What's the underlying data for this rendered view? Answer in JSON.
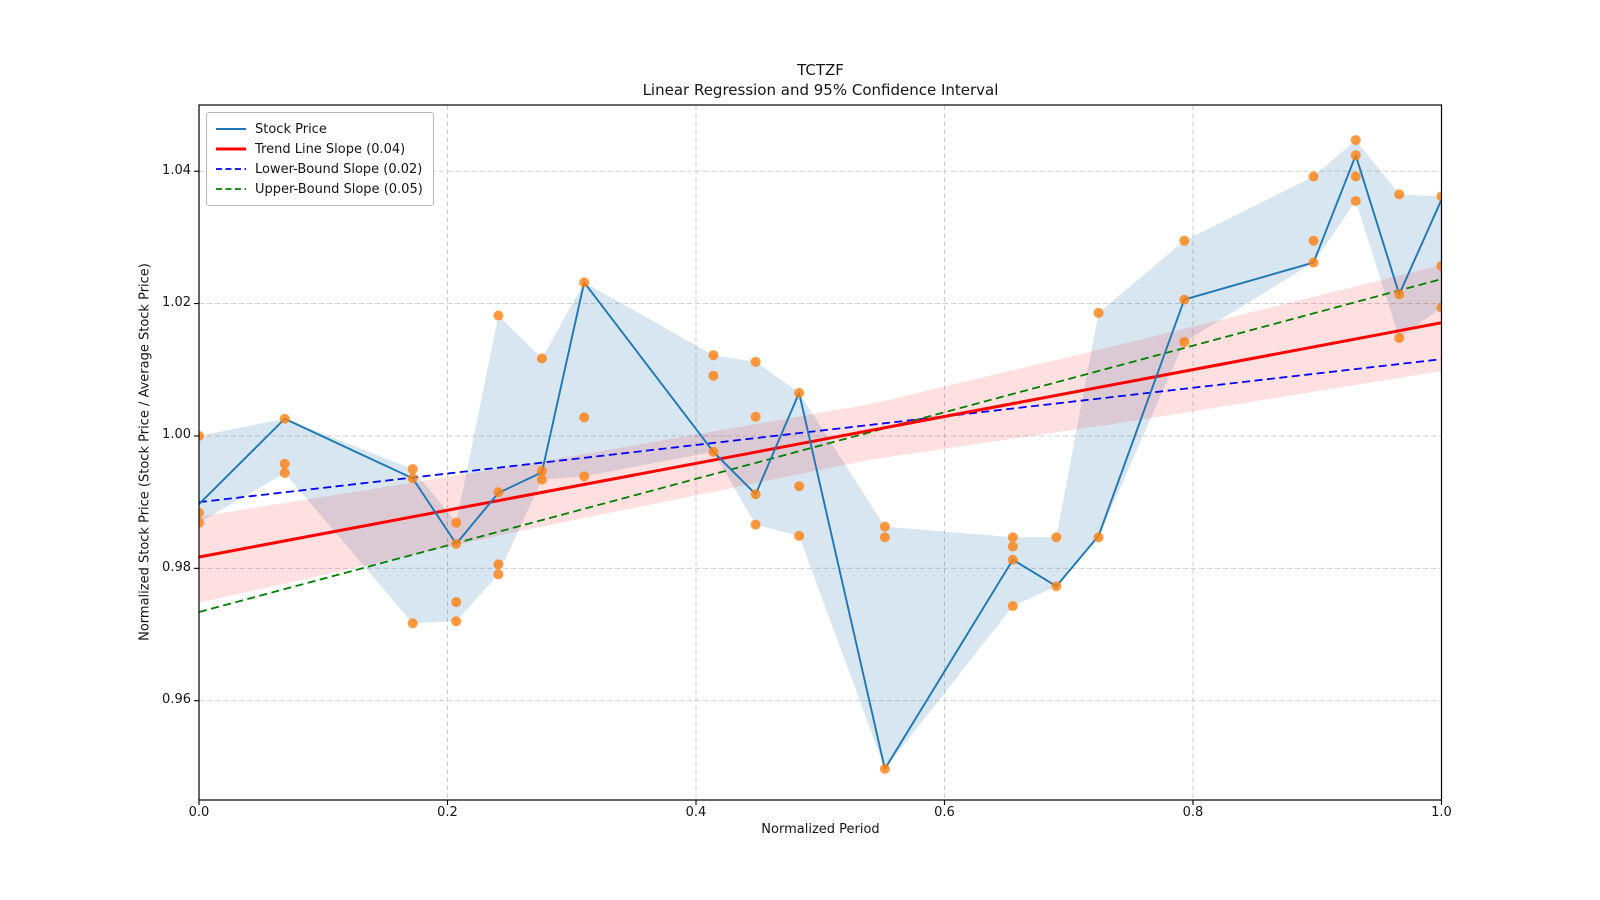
{
  "chart_data": {
    "type": "line",
    "title": "TCTZF",
    "subtitle": "Linear Regression and 95% Confidence Interval",
    "xlabel": "Normalized Period",
    "ylabel": "Normalized Stock Price (Stock Price / Average Stock Price)",
    "xlim": [
      0.0,
      1.0
    ],
    "ylim": [
      0.945,
      1.05
    ],
    "xticks": [
      0.0,
      0.2,
      0.4,
      0.6,
      0.8,
      1.0
    ],
    "xtick_labels": [
      "0.0",
      "0.2",
      "0.4",
      "0.6",
      "0.8",
      "1.0"
    ],
    "yticks": [
      0.96,
      0.98,
      1.0,
      1.02,
      1.04
    ],
    "ytick_labels": [
      "0.96",
      "0.98",
      "1.00",
      "1.02",
      "1.04"
    ],
    "grid": true,
    "legend_position": "upper left",
    "legend": [
      {
        "label": "Stock Price",
        "color": "#1f77b4",
        "dash": false
      },
      {
        "label": "Trend Line Slope (0.04)",
        "color": "#ff0000",
        "dash": false
      },
      {
        "label": "Lower-Bound Slope (0.02)",
        "color": "#0000ff",
        "dash": true
      },
      {
        "label": "Upper-Bound Slope (0.05)",
        "color": "#008000",
        "dash": true
      }
    ],
    "colors": {
      "stock_line": "#1f77b4",
      "stock_band": "rgba(31,119,180,0.18)",
      "trend_line": "#ff0000",
      "ci_band": "rgba(255,0,0,0.12)",
      "lower_bound": "#0000ff",
      "upper_bound": "#008000",
      "scatter": "#ff7f0e",
      "grid": "#c9c9c9"
    },
    "series": [
      {
        "name": "Stock Price",
        "x": [
          0.0,
          0.069,
          0.172,
          0.207,
          0.241,
          0.276,
          0.31,
          0.414,
          0.448,
          0.483,
          0.552,
          0.655,
          0.69,
          0.724,
          0.793,
          0.897,
          0.931,
          0.966,
          1.0
        ],
        "y": [
          0.9897,
          1.0026,
          0.9936,
          0.9837,
          0.9914,
          0.9945,
          1.0232,
          0.9976,
          0.9912,
          1.0065,
          0.9497,
          0.9813,
          0.9773,
          0.9849,
          1.0206,
          1.0262,
          1.0424,
          1.0214,
          1.0357
        ]
      },
      {
        "name": "Stock Price min-max band",
        "x": [
          0.0,
          0.069,
          0.172,
          0.207,
          0.241,
          0.276,
          0.31,
          0.414,
          0.448,
          0.483,
          0.552,
          0.655,
          0.69,
          0.724,
          0.793,
          0.897,
          0.931,
          0.966,
          1.0
        ],
        "upper": [
          1.0,
          1.0026,
          0.995,
          0.9869,
          1.0182,
          1.0117,
          1.0232,
          1.0122,
          1.0112,
          1.0065,
          0.9863,
          0.9847,
          0.9847,
          1.0186,
          1.0295,
          1.0392,
          1.0447,
          1.0365,
          1.0362
        ],
        "lower": [
          0.9869,
          0.9944,
          0.9717,
          0.972,
          0.9791,
          0.9934,
          0.9939,
          0.9976,
          0.9866,
          0.9849,
          0.9497,
          0.9743,
          0.9773,
          0.9847,
          1.0142,
          1.0262,
          1.0355,
          1.0148,
          1.0194
        ]
      },
      {
        "name": "Trend Line Slope (0.04)",
        "x": [
          0.0,
          1.0
        ],
        "y": [
          0.9817,
          1.0171
        ]
      },
      {
        "name": "95% confidence band",
        "x": [
          0.0,
          0.25,
          0.54,
          0.75,
          1.0
        ],
        "upper": [
          0.9878,
          0.9953,
          1.0048,
          1.0142,
          1.0258
        ],
        "lower": [
          0.9748,
          0.9853,
          0.9964,
          1.0022,
          1.0098
        ]
      },
      {
        "name": "Lower-Bound Slope (0.02)",
        "x": [
          0.0,
          1.0
        ],
        "y": [
          0.99,
          1.0116
        ]
      },
      {
        "name": "Upper-Bound Slope (0.05)",
        "x": [
          0.0,
          1.0
        ],
        "y": [
          0.9734,
          1.0237
        ]
      }
    ],
    "scatter_points": [
      [
        0.0,
        1.0
      ],
      [
        0.0,
        0.9884
      ],
      [
        0.0,
        0.9869
      ],
      [
        0.069,
        1.0026
      ],
      [
        0.069,
        0.9958
      ],
      [
        0.069,
        0.9944
      ],
      [
        0.172,
        0.995
      ],
      [
        0.172,
        0.9936
      ],
      [
        0.172,
        0.9717
      ],
      [
        0.207,
        0.9869
      ],
      [
        0.207,
        0.9837
      ],
      [
        0.207,
        0.9749
      ],
      [
        0.207,
        0.972
      ],
      [
        0.241,
        1.0182
      ],
      [
        0.241,
        0.9915
      ],
      [
        0.241,
        0.9806
      ],
      [
        0.241,
        0.9791
      ],
      [
        0.276,
        1.0117
      ],
      [
        0.276,
        0.9947
      ],
      [
        0.276,
        0.9934
      ],
      [
        0.31,
        1.0232
      ],
      [
        0.31,
        1.0028
      ],
      [
        0.31,
        0.9939
      ],
      [
        0.414,
        1.0122
      ],
      [
        0.414,
        1.0091
      ],
      [
        0.414,
        0.9976
      ],
      [
        0.448,
        1.0112
      ],
      [
        0.448,
        1.0029
      ],
      [
        0.448,
        0.9912
      ],
      [
        0.448,
        0.9866
      ],
      [
        0.483,
        1.0065
      ],
      [
        0.483,
        0.9924
      ],
      [
        0.483,
        0.9849
      ],
      [
        0.552,
        0.9863
      ],
      [
        0.552,
        0.9847
      ],
      [
        0.552,
        0.9497
      ],
      [
        0.655,
        0.9847
      ],
      [
        0.655,
        0.9833
      ],
      [
        0.655,
        0.9813
      ],
      [
        0.655,
        0.9743
      ],
      [
        0.69,
        0.9847
      ],
      [
        0.69,
        0.9773
      ],
      [
        0.724,
        1.0186
      ],
      [
        0.724,
        0.9847
      ],
      [
        0.793,
        1.0295
      ],
      [
        0.793,
        1.0206
      ],
      [
        0.793,
        1.0142
      ],
      [
        0.897,
        1.0392
      ],
      [
        0.897,
        1.0295
      ],
      [
        0.897,
        1.0262
      ],
      [
        0.931,
        1.0447
      ],
      [
        0.931,
        1.0424
      ],
      [
        0.931,
        1.0392
      ],
      [
        0.931,
        1.0355
      ],
      [
        0.966,
        1.0365
      ],
      [
        0.966,
        1.0214
      ],
      [
        0.966,
        1.0148
      ],
      [
        1.0,
        1.0362
      ],
      [
        1.0,
        1.0257
      ],
      [
        1.0,
        1.0194
      ]
    ]
  }
}
